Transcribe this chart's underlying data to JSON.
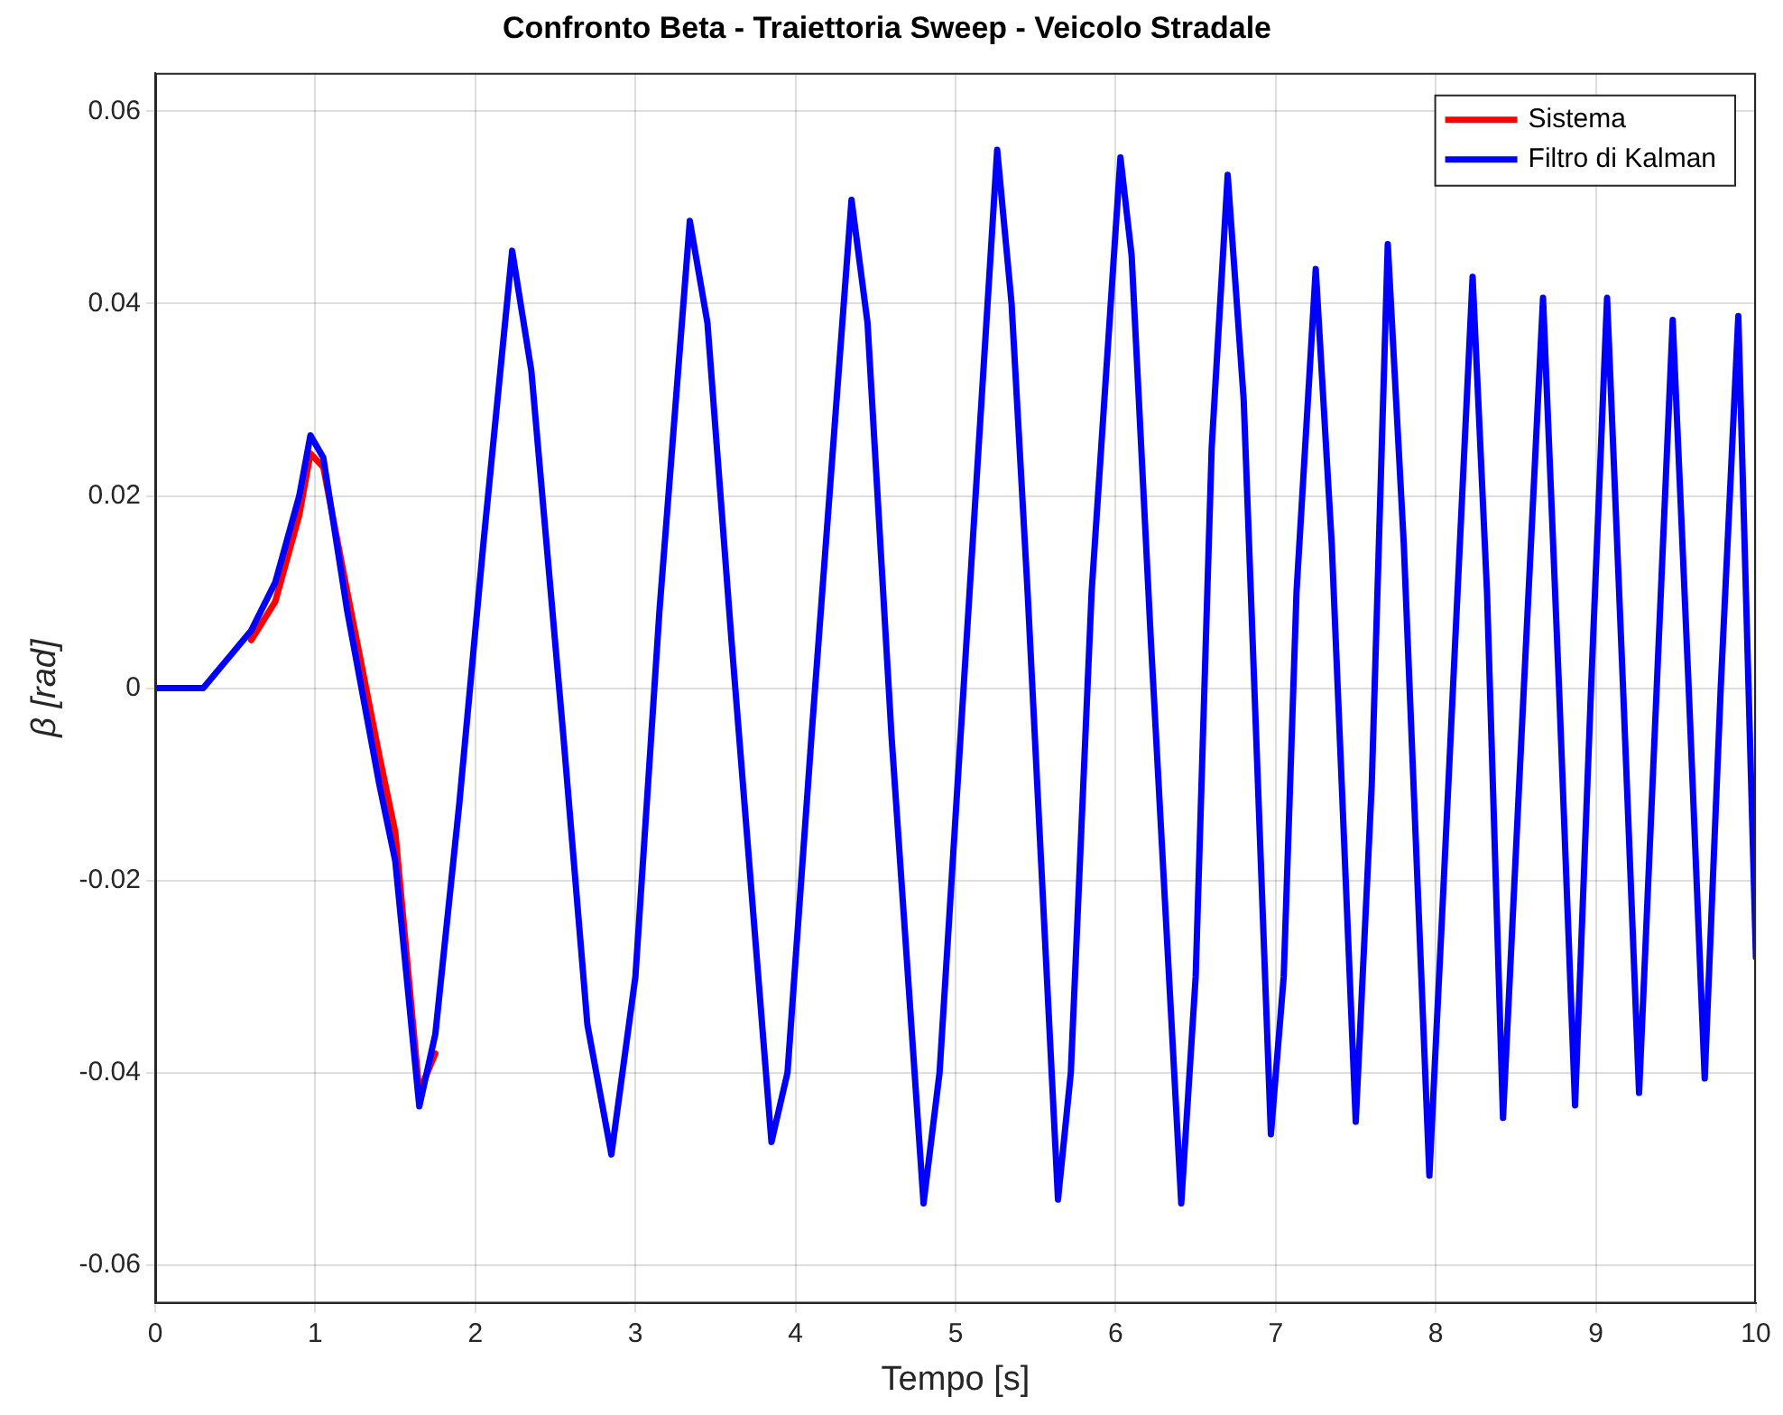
{
  "chart_data": {
    "type": "line",
    "title": "Confronto Beta - Traiettoria Sweep - Veicolo Stradale",
    "xlabel": "Tempo [s]",
    "ylabel": "β [rad]",
    "x": [
      0,
      0.3,
      0.4,
      0.6,
      0.75,
      0.9,
      0.97,
      1.05,
      1.2,
      1.4,
      1.5,
      1.65,
      1.75,
      1.9,
      2.05,
      2.23,
      2.35,
      2.55,
      2.7,
      2.85,
      3.0,
      3.15,
      3.34,
      3.45,
      3.6,
      3.85,
      3.95,
      4.1,
      4.35,
      4.45,
      4.6,
      4.8,
      4.9,
      5.05,
      5.26,
      5.35,
      5.45,
      5.64,
      5.72,
      5.85,
      6.03,
      6.1,
      6.22,
      6.41,
      6.5,
      6.6,
      6.7,
      6.8,
      6.97,
      7.05,
      7.13,
      7.25,
      7.35,
      7.5,
      7.6,
      7.7,
      7.8,
      7.96,
      8.05,
      8.23,
      8.32,
      8.42,
      8.55,
      8.67,
      8.77,
      8.87,
      8.97,
      9.07,
      9.17,
      9.27,
      9.38,
      9.48,
      9.58,
      9.68,
      9.78,
      9.89,
      10
    ],
    "series": [
      {
        "name": "Sistema",
        "color": "#ff0000",
        "values": [
          null,
          null,
          null,
          0.005,
          0.009,
          0.018,
          0.0244,
          0.023,
          0.01,
          -0.007,
          -0.015,
          -0.042,
          -0.038,
          null,
          null,
          null,
          null,
          null,
          null,
          null,
          null,
          null,
          null,
          null,
          null,
          null,
          null,
          null,
          null,
          null,
          null,
          null,
          null,
          null,
          null,
          null,
          null,
          null,
          null,
          null,
          null,
          null,
          null,
          null,
          null,
          null,
          null,
          null,
          null,
          null,
          null,
          null,
          null,
          null,
          null,
          null,
          null,
          null,
          null,
          null,
          null,
          null,
          null,
          null,
          null,
          null,
          null,
          null,
          null,
          null,
          null,
          null,
          null,
          null,
          null,
          null,
          null
        ]
      },
      {
        "name": "Filtro di Kalman",
        "color": "#0000ff",
        "values": [
          0,
          0,
          0.002,
          0.006,
          0.011,
          0.02,
          0.0263,
          0.024,
          0.008,
          -0.01,
          -0.018,
          -0.0435,
          -0.036,
          -0.012,
          0.015,
          0.0455,
          0.033,
          -0.005,
          -0.035,
          -0.0485,
          -0.03,
          0.008,
          0.0486,
          0.038,
          0.005,
          -0.0472,
          -0.04,
          -0.005,
          0.0508,
          0.038,
          -0.005,
          -0.0536,
          -0.04,
          0,
          0.056,
          0.04,
          0.01,
          -0.0532,
          -0.04,
          0.01,
          0.0552,
          0.045,
          0.005,
          -0.0536,
          -0.03,
          0.025,
          0.0534,
          0.03,
          -0.0464,
          -0.03,
          0.01,
          0.0436,
          0.015,
          -0.0451,
          -0.01,
          0.0462,
          0.015,
          -0.0507,
          -0.02,
          0.0428,
          0.01,
          -0.0447,
          0,
          0.0406,
          0,
          -0.0434,
          0,
          0.0406,
          0,
          -0.0421,
          0,
          0.0383,
          0,
          -0.0406,
          0,
          0.0387,
          -0.028
        ]
      }
    ],
    "xlim": [
      0,
      10
    ],
    "xticks": [
      0,
      1,
      2,
      3,
      4,
      5,
      6,
      7,
      8,
      9,
      10
    ],
    "ylim": [
      -0.064,
      0.064
    ],
    "yticks": [
      -0.06,
      -0.04,
      -0.02,
      0,
      0.02,
      0.04,
      0.06
    ],
    "grid": true,
    "legend": "top right",
    "marker": "none",
    "line_style": "solid"
  }
}
